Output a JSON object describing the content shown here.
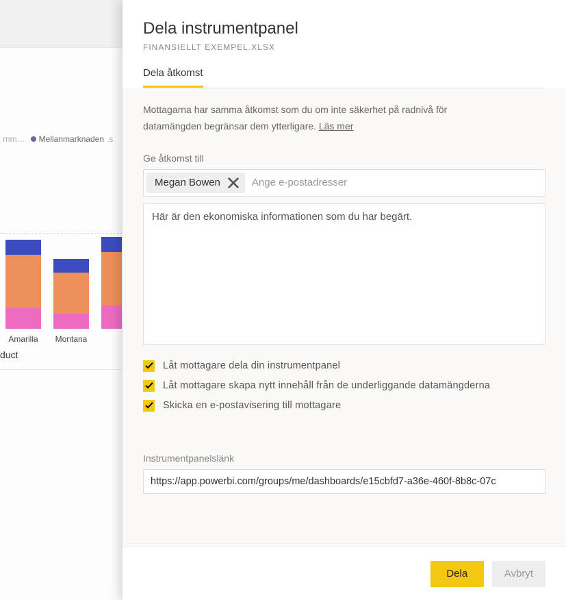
{
  "background": {
    "legend_prefix": "rnm…",
    "legend_item": "Mellanmarknaden",
    "legend_suffix": ".s",
    "legend_dot_color": "#7c5ba6",
    "axis_title": "duct",
    "chart": {
      "categories": [
        "Amarilla",
        "Montana",
        ""
      ],
      "bars": [
        {
          "segments": [
            {
              "color": "#3b4cc0",
              "h": 22
            },
            {
              "color": "#ec8f5a",
              "h": 78
            },
            {
              "color": "#ec6bc0",
              "h": 30
            }
          ]
        },
        {
          "segments": [
            {
              "color": "#3b4cc0",
              "h": 20
            },
            {
              "color": "#ec8f5a",
              "h": 60
            },
            {
              "color": "#ec6bc0",
              "h": 22
            }
          ]
        },
        {
          "segments": [
            {
              "color": "#3b4cc0",
              "h": 22
            },
            {
              "color": "#ec8f5a",
              "h": 78
            },
            {
              "color": "#ec6bc0",
              "h": 34
            }
          ]
        }
      ]
    }
  },
  "panel": {
    "title": "Dela instrumentpanel",
    "subtitle": "FINANSIELLT  EXEMPEL.XLSX",
    "tab_label": "Dela åtkomst",
    "info_line1": "Mottagarna har samma åtkomst som du om inte säkerhet på radnivå för",
    "info_line2": " datamängden begränsar dem ytterligare. ",
    "info_link": "Läs mer",
    "access_label": "Ge åtkomst till",
    "chip_name": "Megan Bowen",
    "recipient_placeholder": "Ange e-postadresser",
    "message_value": "Här är den ekonomiska informationen som du har begärt.",
    "checks": [
      "Låt mottagare dela din instrumentpanel",
      "Låt mottagare  skapa nytt innehåll från de underliggande datamängderna",
      "Skicka en e-postavisering till mottagare"
    ],
    "link_label": "Instrumentpanelslänk",
    "link_value": "https://app.powerbi.com/groups/me/dashboards/e15cbfd7-a36e-460f-8b8c-07c",
    "share_btn": "Dela",
    "cancel_btn": "Avbryt"
  },
  "colors": {
    "accent": "#f2c811"
  }
}
